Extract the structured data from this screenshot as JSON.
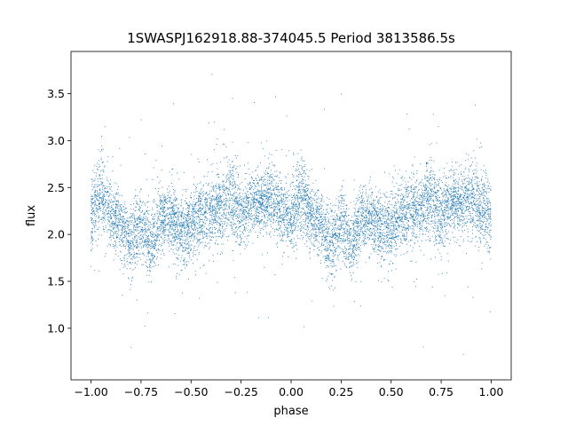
{
  "chart_data": {
    "type": "scatter",
    "title": "1SWASPJ162918.88-374045.5 Period 3813586.5s",
    "xlabel": "phase",
    "ylabel": "flux",
    "xlim": [
      -1.1,
      1.1
    ],
    "ylim": [
      0.45,
      3.95
    ],
    "x_ticks": [
      -1.0,
      -0.75,
      -0.5,
      -0.25,
      0.0,
      0.25,
      0.5,
      0.75,
      1.0
    ],
    "x_tick_labels": [
      "−1.00",
      "−0.75",
      "−0.50",
      "−0.25",
      "0.00",
      "0.25",
      "0.50",
      "0.75",
      "1.00"
    ],
    "y_ticks": [
      1.0,
      1.5,
      2.0,
      2.5,
      3.0,
      3.5
    ],
    "y_tick_labels": [
      "1.0",
      "1.5",
      "2.0",
      "2.5",
      "3.0",
      "3.5"
    ],
    "grid": false,
    "marker_color": "#1f77b4",
    "series": [
      {
        "x_range": [
          -1.0,
          1.0
        ],
        "typical_flux_range": [
          1.5,
          2.9
        ],
        "flux_extremes": [
          0.65,
          3.8
        ],
        "profile": {
          "phase": [
            0.0,
            0.05,
            0.1,
            0.15,
            0.2,
            0.25,
            0.3,
            0.35,
            0.4,
            0.45,
            0.5,
            0.55,
            0.6,
            0.65,
            0.7,
            0.75,
            0.8,
            0.85,
            0.9,
            0.95,
            1.0
          ],
          "median_flux": [
            2.2,
            2.45,
            2.2,
            2.1,
            1.9,
            2.15,
            1.85,
            2.2,
            2.15,
            2.05,
            2.1,
            2.2,
            2.25,
            2.3,
            2.4,
            2.2,
            2.35,
            2.35,
            2.4,
            2.25,
            2.2
          ],
          "spread": [
            0.35,
            0.4,
            0.3,
            0.3,
            0.35,
            0.35,
            0.35,
            0.3,
            0.3,
            0.35,
            0.35,
            0.35,
            0.35,
            0.35,
            0.4,
            0.35,
            0.3,
            0.3,
            0.35,
            0.35,
            0.35
          ]
        },
        "point_count": 9000
      }
    ]
  }
}
